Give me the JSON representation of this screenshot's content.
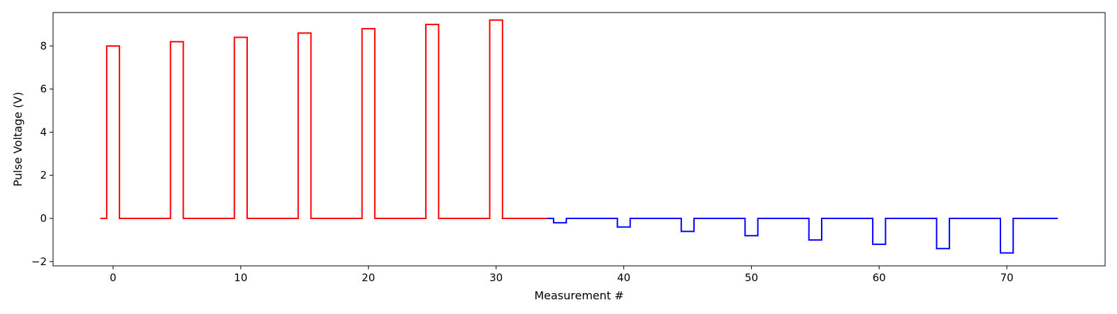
{
  "chart_data": {
    "type": "line",
    "title": "",
    "xlabel": "Measurement #",
    "ylabel": "Pulse Voltage (V)",
    "xlim": [
      -4.7,
      77.7
    ],
    "ylim": [
      -2.2,
      9.55
    ],
    "xticks": [
      0,
      10,
      20,
      30,
      40,
      50,
      60,
      70
    ],
    "yticks": [
      -2,
      0,
      2,
      4,
      6,
      8
    ],
    "xtick_labels": [
      "0",
      "10",
      "20",
      "30",
      "40",
      "50",
      "60",
      "70"
    ],
    "ytick_labels": [
      "−2",
      "0",
      "2",
      "4",
      "6",
      "8"
    ],
    "grid": false,
    "series": [
      {
        "color": "#ff0000",
        "step": "mid",
        "x": [
          -1,
          0,
          1,
          2,
          3,
          4,
          5,
          6,
          7,
          8,
          9,
          10,
          11,
          12,
          13,
          14,
          15,
          16,
          17,
          18,
          19,
          20,
          21,
          22,
          23,
          24,
          25,
          26,
          27,
          28,
          29,
          30,
          31,
          32,
          33,
          34
        ],
        "values": [
          0,
          8.0,
          0,
          0,
          0,
          0,
          8.2,
          0,
          0,
          0,
          0,
          8.4,
          0,
          0,
          0,
          0,
          8.6,
          0,
          0,
          0,
          0,
          8.8,
          0,
          0,
          0,
          0,
          9.0,
          0,
          0,
          0,
          0,
          9.2,
          0,
          0,
          0,
          0
        ]
      },
      {
        "color": "#0000ff",
        "step": "mid",
        "x": [
          34,
          35,
          36,
          37,
          38,
          39,
          40,
          41,
          42,
          43,
          44,
          45,
          46,
          47,
          48,
          49,
          50,
          51,
          52,
          53,
          54,
          55,
          56,
          57,
          58,
          59,
          60,
          61,
          62,
          63,
          64,
          65,
          66,
          67,
          68,
          69,
          70,
          71,
          72,
          73,
          74
        ],
        "values": [
          0,
          -0.2,
          0,
          0,
          0,
          0,
          -0.4,
          0,
          0,
          0,
          0,
          -0.6,
          0,
          0,
          0,
          0,
          -0.8,
          0,
          0,
          0,
          0,
          -1.0,
          0,
          0,
          0,
          0,
          -1.2,
          0,
          0,
          0,
          0,
          -1.4,
          0,
          0,
          0,
          0,
          -1.6,
          0,
          0,
          0,
          0
        ]
      }
    ]
  }
}
